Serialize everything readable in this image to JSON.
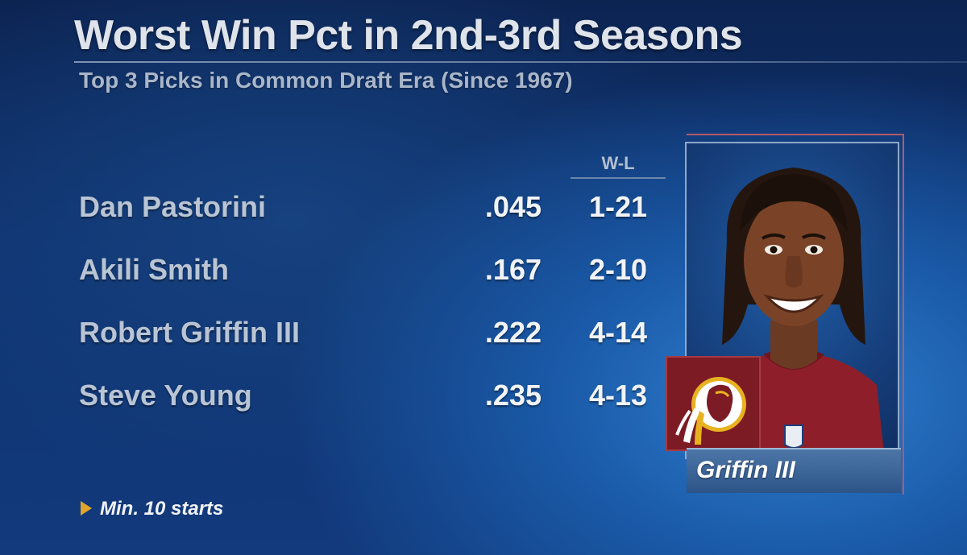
{
  "title": "Worst Win Pct in 2nd-3rd Seasons",
  "subtitle": "Top 3 Picks in Common Draft Era (Since 1967)",
  "column_header": "W-L",
  "rows": [
    {
      "name": "Dan Pastorini",
      "pct": ".045",
      "wl": "1-21"
    },
    {
      "name": "Akili Smith",
      "pct": ".167",
      "wl": "2-10"
    },
    {
      "name": "Robert Griffin III",
      "pct": ".222",
      "wl": "4-14"
    },
    {
      "name": "Steve Young",
      "pct": ".235",
      "wl": "4-13"
    }
  ],
  "footnote": "Min. 10 starts",
  "player_caption": "Griffin III",
  "colors": {
    "background": "#0f3270",
    "accent_arrow": "#e0a52a",
    "team_maroon": "#7d1b24",
    "team_gold": "#e8b21f"
  },
  "icons": {
    "footnote_marker": "play-triangle-icon",
    "team": "redskins-logo-icon"
  }
}
